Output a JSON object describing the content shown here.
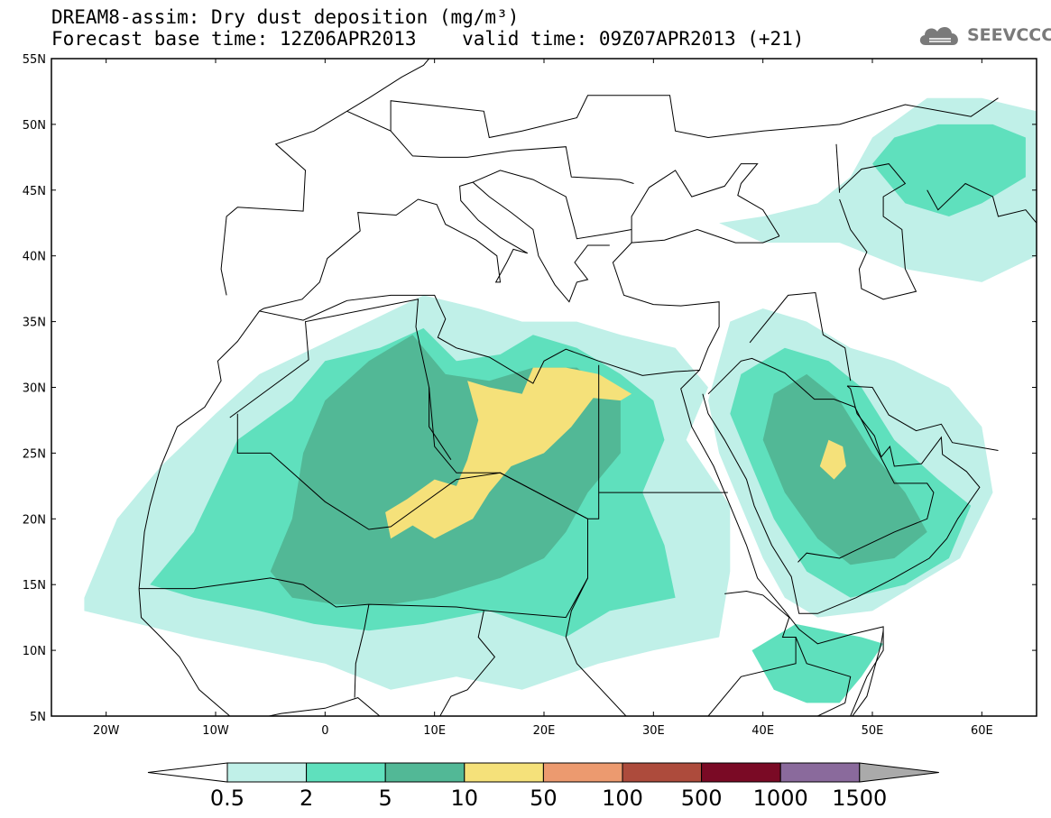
{
  "header": {
    "title_line1": "DREAM8-assim: Dry dust deposition (mg/m³)",
    "title_line2": "Forecast base time: 12Z06APR2013    valid time: 09Z07APR2013 (+21)",
    "logo_text": "SEEVCCC"
  },
  "map": {
    "lon_range": [
      -25,
      65
    ],
    "lat_range": [
      5,
      55
    ],
    "lat_labels": [
      "55N",
      "50N",
      "45N",
      "40N",
      "35N",
      "30N",
      "25N",
      "20N",
      "15N",
      "10N",
      "5N"
    ],
    "lon_labels": [
      "20W",
      "10W",
      "0",
      "10E",
      "20E",
      "30E",
      "40E",
      "50E",
      "60E"
    ],
    "coastline_color": "#000000",
    "dust_regions": [
      {
        "name": "sahara-outer",
        "level": "0.5"
      },
      {
        "name": "sahara-mid",
        "level": "2"
      },
      {
        "name": "sahara-inner",
        "level": "5"
      },
      {
        "name": "libya-chad-max",
        "level": "10"
      },
      {
        "name": "arabia-outer",
        "level": "0.5"
      },
      {
        "name": "arabia-mid",
        "level": "2"
      },
      {
        "name": "arabia-inner",
        "level": "5"
      },
      {
        "name": "arabia-max",
        "level": "10"
      },
      {
        "name": "caspian-outer",
        "level": "0.5"
      },
      {
        "name": "caspian-mid",
        "level": "2"
      },
      {
        "name": "horn-africa",
        "level": "2"
      }
    ]
  },
  "colorbar": {
    "levels": [
      {
        "label": "0.5",
        "color": "#c0f0e8"
      },
      {
        "label": "2",
        "color": "#5fe0bd"
      },
      {
        "label": "5",
        "color": "#52b896"
      },
      {
        "label": "10",
        "color": "#f5e17a"
      },
      {
        "label": "50",
        "color": "#ec9a6f"
      },
      {
        "label": "100",
        "color": "#ad4b3c"
      },
      {
        "label": "500",
        "color": "#7a0a25"
      },
      {
        "label": "1000",
        "color": "#8a6a9c"
      },
      {
        "label": "1500",
        "color": "#aaaaaa"
      }
    ],
    "low_end_color": "#ffffff",
    "high_end_color": "#aaaaaa"
  }
}
